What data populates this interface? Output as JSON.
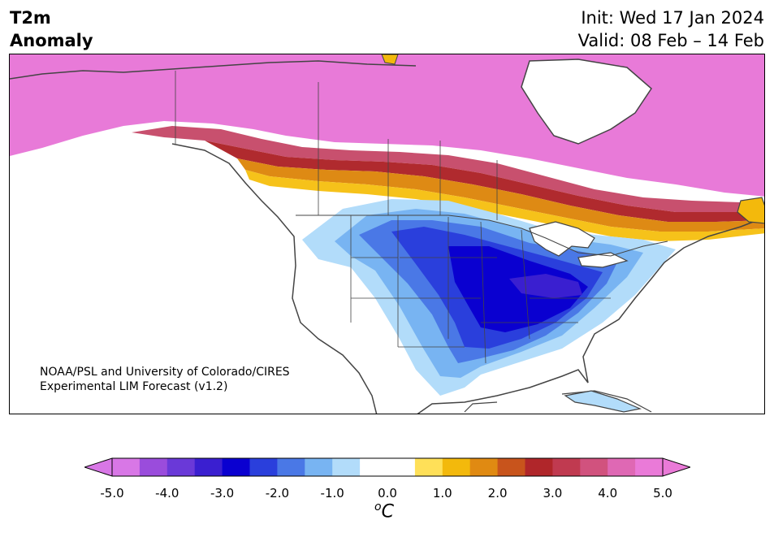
{
  "header": {
    "title_line1": "T2m",
    "title_line2": "Anomaly",
    "init_text": "Init: Wed 17 Jan 2024",
    "valid_text": "Valid: 08 Feb – 14 Feb"
  },
  "credit": {
    "line1": "NOAA/PSL and University of Colorado/CIRES",
    "line2": "Experimental LIM Forecast (v1.2)"
  },
  "colorbar": {
    "unit_degree": "o",
    "unit_letter": "C",
    "tick_labels": [
      "-5.0",
      "-4.0",
      "-3.0",
      "-2.0",
      "-1.0",
      "0.0",
      "1.0",
      "2.0",
      "3.0",
      "4.0",
      "5.0"
    ],
    "colors": [
      "#d877e6",
      "#9a4cdc",
      "#6a39d8",
      "#3a1fd0",
      "#0a00d0",
      "#2a3fdc",
      "#4a78e6",
      "#78b4f2",
      "#b2dcfa",
      "#ffffff",
      "#ffffff",
      "#ffe058",
      "#f3b90c",
      "#e08a12",
      "#c8541c",
      "#b0262a",
      "#c03a50",
      "#d1527e",
      "#df68b4",
      "#ea7ad8"
    ],
    "under_color": "#d877e6",
    "over_color": "#ea7ad8"
  },
  "map": {
    "ocean_color": "#ffffff",
    "coastline_color": "#444444"
  }
}
